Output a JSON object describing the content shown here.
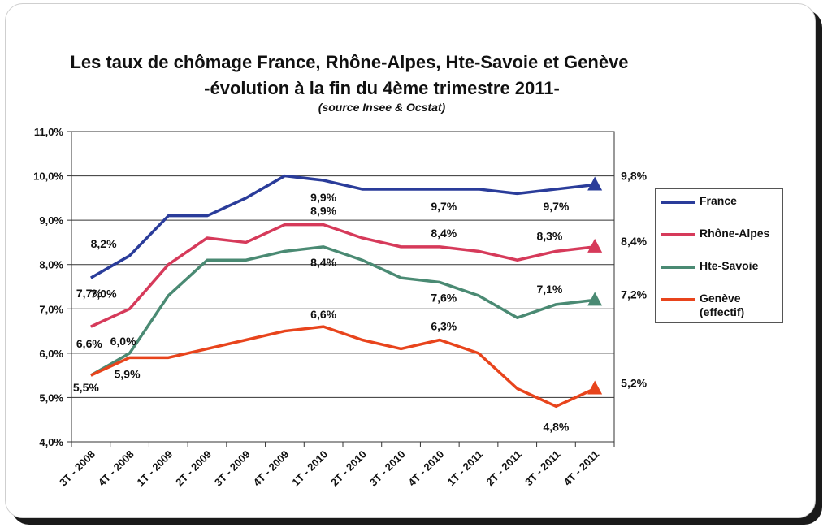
{
  "chart_data": {
    "type": "line",
    "title": "Les taux de chômage France, Rhône-Alpes, Hte-Savoie et Genève",
    "subtitle": "-évolution à la fin du 4ème  trimestre 2011-",
    "source": "(source Insee & Ocstat)",
    "categories": [
      "3T - 2008",
      "4T - 2008",
      "1T - 2009",
      "2T - 2009",
      "3T - 2009",
      "4T - 2009",
      "1T - 2010",
      "2T - 2010",
      "3T - 2010",
      "4T - 2010",
      "1T - 2011",
      "2T - 2011",
      "3T - 2011",
      "4T - 2011"
    ],
    "ylim": [
      4.0,
      11.0
    ],
    "yticks": [
      "4,0%",
      "5,0%",
      "6,0%",
      "7,0%",
      "8,0%",
      "9,0%",
      "10,0%",
      "11,0%"
    ],
    "grid": true,
    "legend_position": "right",
    "series": [
      {
        "name": "France",
        "color": "#2a3c9a",
        "values": [
          7.7,
          8.2,
          9.1,
          9.1,
          9.5,
          10.0,
          9.9,
          9.7,
          9.7,
          9.7,
          9.7,
          9.6,
          9.7,
          9.8
        ],
        "labels": [
          {
            "i": 0,
            "text": "7,7%"
          },
          {
            "i": 1,
            "text": "8,2%"
          },
          {
            "i": 6,
            "text": "9,9%"
          },
          {
            "i": 9,
            "text": "9,7%"
          },
          {
            "i": 12,
            "text": "9,7%"
          },
          {
            "i": 13,
            "text": "9,8%"
          }
        ]
      },
      {
        "name": "Rhône-Alpes",
        "color": "#d63a5a",
        "values": [
          6.6,
          7.0,
          8.0,
          8.6,
          8.5,
          8.9,
          8.9,
          8.6,
          8.4,
          8.4,
          8.3,
          8.1,
          8.3,
          8.4
        ],
        "labels": [
          {
            "i": 0,
            "text": "6,6%"
          },
          {
            "i": 1,
            "text": "7,0%"
          },
          {
            "i": 6,
            "text": "8,9%"
          },
          {
            "i": 9,
            "text": "8,4%"
          },
          {
            "i": 12,
            "text": "8,3%"
          },
          {
            "i": 13,
            "text": "8,4%"
          }
        ]
      },
      {
        "name": "Hte-Savoie",
        "color": "#4a8a73",
        "values": [
          5.5,
          6.0,
          7.3,
          8.1,
          8.1,
          8.3,
          8.4,
          8.1,
          7.7,
          7.6,
          7.3,
          6.8,
          7.1,
          7.2
        ],
        "labels": [
          {
            "i": 1,
            "text": "6,0%"
          },
          {
            "i": 6,
            "text": "8,4%"
          },
          {
            "i": 9,
            "text": "7,6%"
          },
          {
            "i": 12,
            "text": "7,1%"
          },
          {
            "i": 13,
            "text": "7,2%"
          }
        ]
      },
      {
        "name": "Genève (effectif)",
        "color": "#e8441c",
        "values": [
          5.5,
          5.9,
          5.9,
          6.1,
          6.3,
          6.5,
          6.6,
          6.3,
          6.1,
          6.3,
          6.0,
          5.2,
          4.8,
          5.2
        ],
        "labels": [
          {
            "i": 0,
            "text": "5,5%"
          },
          {
            "i": 1,
            "text": "5,9%"
          },
          {
            "i": 6,
            "text": "6,6%"
          },
          {
            "i": 9,
            "text": "6,3%"
          },
          {
            "i": 12,
            "text": "4,8%"
          },
          {
            "i": 13,
            "text": "5,2%"
          }
        ]
      }
    ]
  },
  "legend": {
    "items": [
      {
        "label": "France"
      },
      {
        "label": "Rhône-Alpes"
      },
      {
        "label": "Hte-Savoie"
      },
      {
        "label": "Genève (effectif)"
      }
    ]
  }
}
